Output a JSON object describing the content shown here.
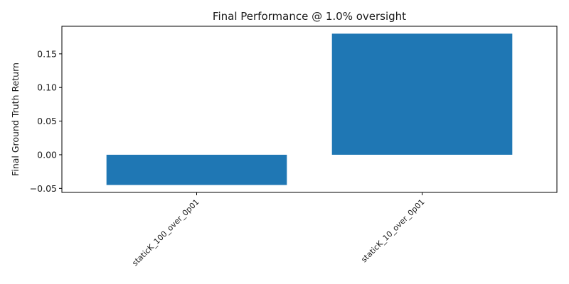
{
  "chart_data": {
    "type": "bar",
    "title": "Final Performance @ 1.0% oversight",
    "xlabel": "",
    "ylabel": "Final Ground Truth Return",
    "categories": [
      "staticK_100_over_0p01",
      "staticK_10_over_0p01"
    ],
    "values": [
      -0.045,
      0.18
    ],
    "ylim": [
      -0.056,
      0.191
    ],
    "yticks": [
      -0.05,
      0.0,
      0.05,
      0.1,
      0.15
    ],
    "ytick_labels": [
      "−0.05",
      "0.00",
      "0.05",
      "0.10",
      "0.15"
    ],
    "bar_color": "#1f77b4",
    "grid": false,
    "legend": "none"
  }
}
